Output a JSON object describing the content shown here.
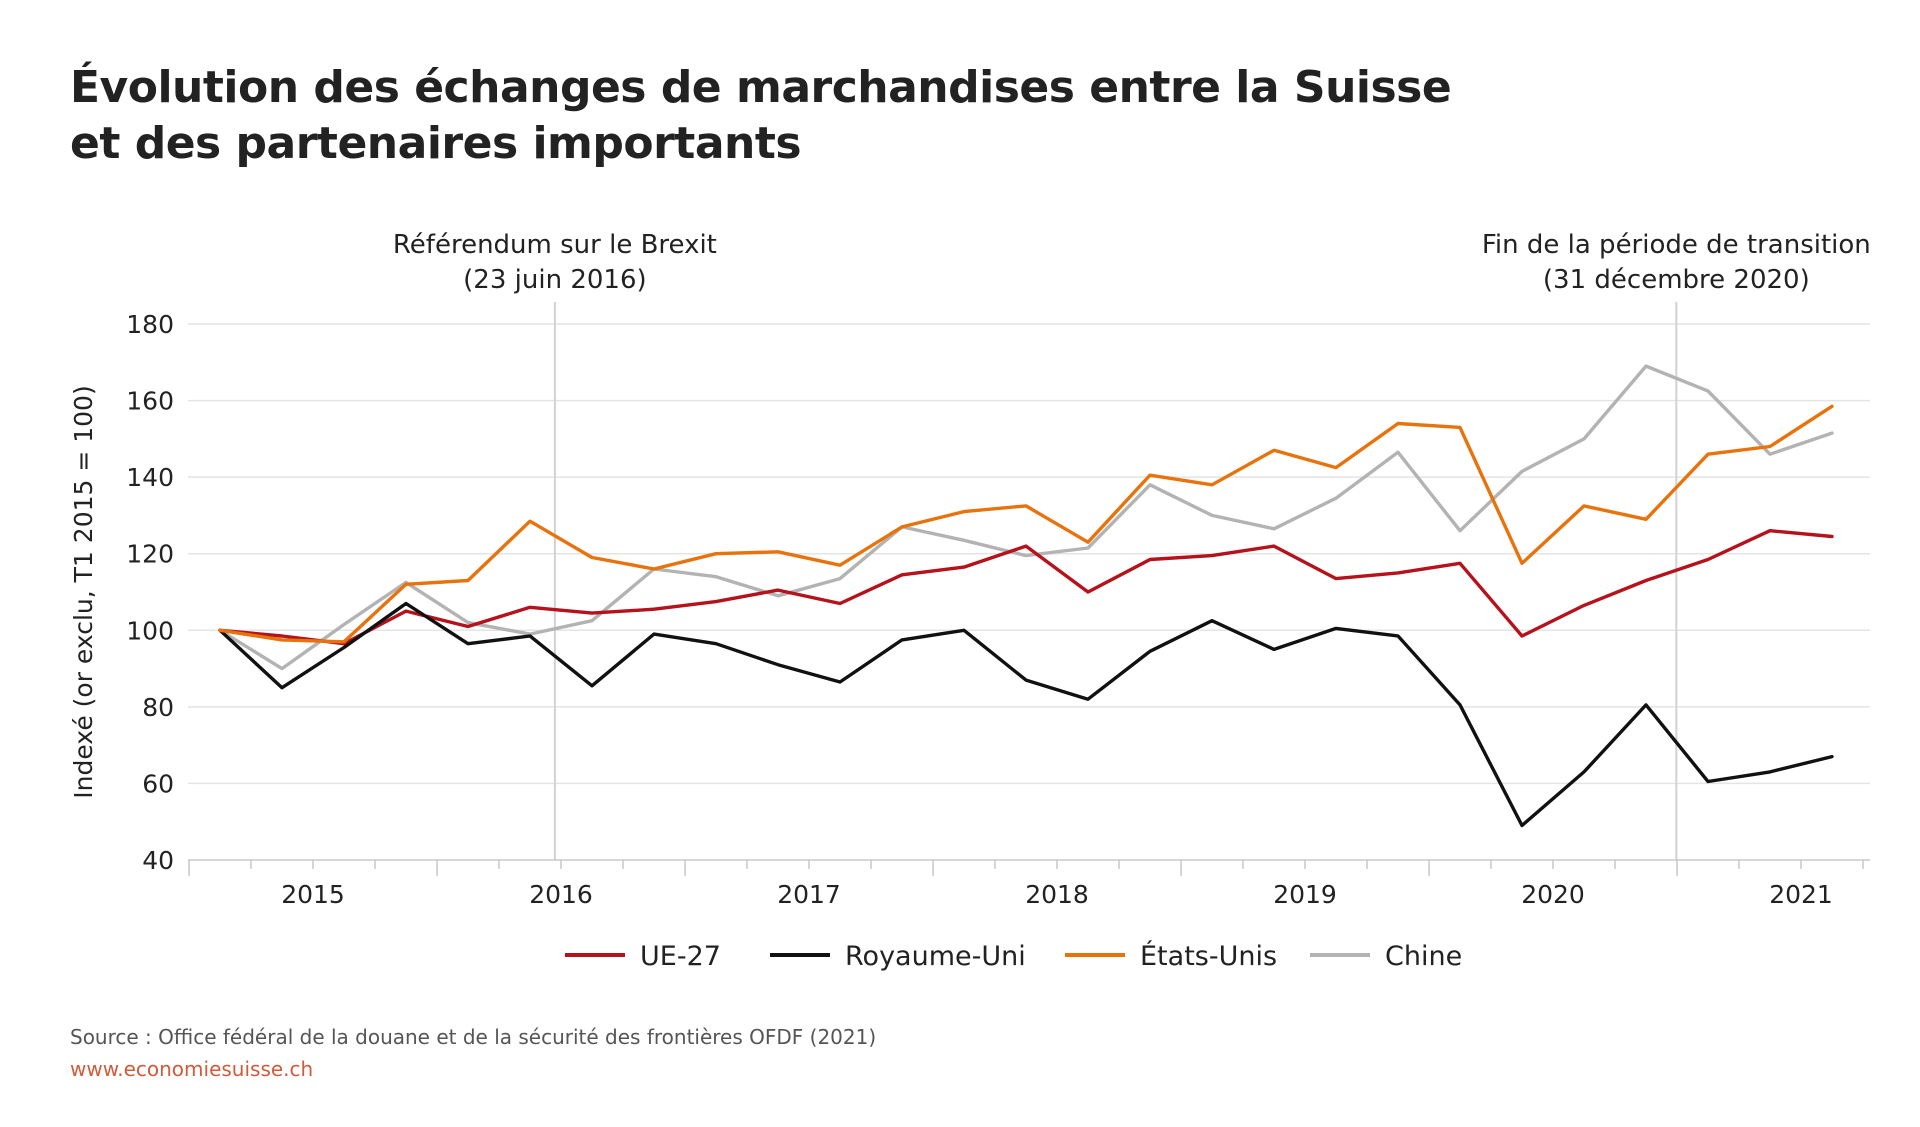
{
  "title_lines": [
    "Évolution des échanges de marchandises entre la Suisse",
    "et des partenaires importants"
  ],
  "source": "Source : Office fédéral de la douane et de la sécurité des frontières OFDF (2021)",
  "website": "www.economiesuisse.ch",
  "chart_data": {
    "type": "line",
    "title": "Évolution des échanges de marchandises entre la Suisse et des partenaires importants",
    "ylabel": "Indexé (or exclu, T1 2015 = 100)",
    "xlabel": "",
    "ylim": [
      40,
      180
    ],
    "yticks": [
      40,
      60,
      80,
      100,
      120,
      140,
      160,
      180
    ],
    "x_years": [
      "2015",
      "2016",
      "2017",
      "2018",
      "2019",
      "2020",
      "2021"
    ],
    "grid": "horizontal",
    "legend_position": "bottom",
    "x": [
      "2015-T1",
      "2015-T2",
      "2015-T3",
      "2015-T4",
      "2016-T1",
      "2016-T2",
      "2016-T3",
      "2016-T4",
      "2017-T1",
      "2017-T2",
      "2017-T3",
      "2017-T4",
      "2018-T1",
      "2018-T2",
      "2018-T3",
      "2018-T4",
      "2019-T1",
      "2019-T2",
      "2019-T3",
      "2019-T4",
      "2020-T1",
      "2020-T2",
      "2020-T3",
      "2020-T4",
      "2021-T1",
      "2021-T2",
      "2021-T3"
    ],
    "series": [
      {
        "name": "UE-27",
        "color": "#b5121b",
        "values": [
          100,
          98.5,
          96.5,
          105,
          101,
          106,
          104.5,
          105.5,
          107.5,
          110.5,
          107,
          114.5,
          116.5,
          122,
          110,
          118.5,
          119.5,
          122,
          113.5,
          115,
          117.5,
          98.5,
          106.5,
          113,
          118.5,
          126,
          124.5
        ]
      },
      {
        "name": "Royaume-Uni",
        "color": "#111111",
        "values": [
          100,
          85,
          95.5,
          107,
          96.5,
          98.5,
          85.5,
          99,
          96.5,
          91,
          86.5,
          97.5,
          100,
          87,
          82,
          94.5,
          102.5,
          95,
          100.5,
          98.5,
          80.5,
          49,
          63,
          80.5,
          60.5,
          63,
          67
        ]
      },
      {
        "name": "États-Unis",
        "color": "#e8730c",
        "values": [
          100,
          97.5,
          97,
          112,
          113,
          128.5,
          119,
          116,
          120,
          120.5,
          117,
          127,
          131,
          132.5,
          123,
          140.5,
          138,
          147,
          142.5,
          154,
          153,
          117.5,
          132.5,
          129,
          146,
          148,
          158.5
        ]
      },
      {
        "name": "Chine",
        "color": "#b3b3b3",
        "values": [
          100,
          90,
          101.5,
          112.5,
          102,
          99,
          102.5,
          116,
          114,
          109,
          113.5,
          127,
          123.5,
          119.5,
          121.5,
          138,
          130,
          126.5,
          134.5,
          146.5,
          126,
          141.5,
          150,
          169,
          162.5,
          146,
          151.5
        ]
      }
    ],
    "annotations": [
      {
        "label_lines": [
          "Référendum sur le Brexit",
          "(23 juin 2016)"
        ],
        "x": "2016-06-23"
      },
      {
        "label_lines": [
          "Fin de la période de transition",
          "(31 décembre 2020)"
        ],
        "x": "2020-12-31"
      }
    ]
  }
}
